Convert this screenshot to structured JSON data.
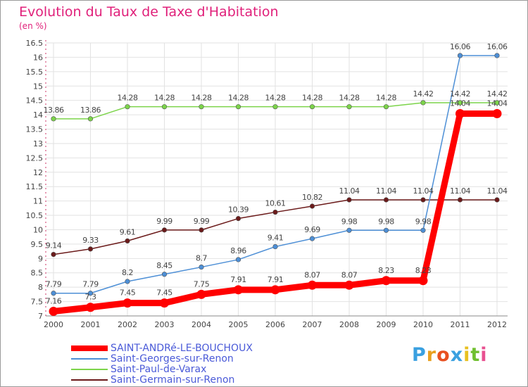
{
  "chart_data": {
    "type": "line",
    "title": "Evolution du Taux de Taxe d'Habitation",
    "ylabel": "(en %)",
    "xlabel": "",
    "x": [
      "2000",
      "2001",
      "2002",
      "2003",
      "2004",
      "2005",
      "2006",
      "2007",
      "2008",
      "2009",
      "2010",
      "2011",
      "2012"
    ],
    "ylim": [
      7,
      16.5
    ],
    "yticks": [
      "7",
      "7.5",
      "8",
      "8.5",
      "9",
      "9.5",
      "10",
      "10.5",
      "11",
      "11.5",
      "12",
      "12.5",
      "13",
      "13.5",
      "14",
      "14.5",
      "15",
      "15.5",
      "16",
      "16.5"
    ],
    "grid": true,
    "series": [
      {
        "name": "SAINT-ANDRé-LE-BOUCHOUX",
        "color": "#ff0000",
        "values": [
          7.16,
          7.3,
          7.45,
          7.45,
          7.75,
          7.91,
          7.91,
          8.07,
          8.07,
          8.23,
          8.23,
          14.04,
          14.04
        ],
        "labels": [
          "7.16",
          "7.3",
          "7.45",
          "7.45",
          "7.75",
          "7.91",
          "7.91",
          "8.07",
          "8.07",
          "8.23",
          "8.23",
          "14.04",
          "14.04"
        ]
      },
      {
        "name": "Saint-Georges-sur-Renon",
        "color": "#4d8fd6",
        "values": [
          7.79,
          7.79,
          8.2,
          8.45,
          8.7,
          8.96,
          9.41,
          9.69,
          9.98,
          9.98,
          9.98,
          16.06,
          16.06
        ],
        "labels": [
          "7.79",
          "7.79",
          "8.2",
          "8.45",
          "8.7",
          "8.96",
          "9.41",
          "9.69",
          "9.98",
          "9.98",
          "9.98",
          "16.06",
          "16.06"
        ]
      },
      {
        "name": "Saint-Paul-de-Varax",
        "color": "#7cd44a",
        "values": [
          13.86,
          13.86,
          14.28,
          14.28,
          14.28,
          14.28,
          14.28,
          14.28,
          14.28,
          14.28,
          14.42,
          14.42,
          14.42
        ],
        "labels": [
          "13.86",
          "13.86",
          "14.28",
          "14.28",
          "14.28",
          "14.28",
          "14.28",
          "14.28",
          "14.28",
          "14.28",
          "14.42",
          "14.42",
          "14.42"
        ]
      },
      {
        "name": "Saint-Germain-sur-Renon",
        "color": "#6b1a1a",
        "values": [
          9.14,
          9.33,
          9.61,
          9.99,
          9.99,
          10.39,
          10.61,
          10.82,
          11.04,
          11.04,
          11.04,
          11.04,
          11.04
        ],
        "labels": [
          "9.14",
          "9.33",
          "9.61",
          "9.99",
          "9.99",
          "10.39",
          "10.61",
          "10.82",
          "11.04",
          "11.04",
          "11.04",
          "11.04",
          "11.04"
        ]
      }
    ]
  },
  "logo": {
    "letters": [
      "P",
      "r",
      "o",
      "x",
      "i",
      "t",
      "i"
    ],
    "colors": [
      "#3aa0e0",
      "#e8a020",
      "#e85020",
      "#3aa0e0",
      "#e8c020",
      "#70c030",
      "#e85090"
    ]
  }
}
